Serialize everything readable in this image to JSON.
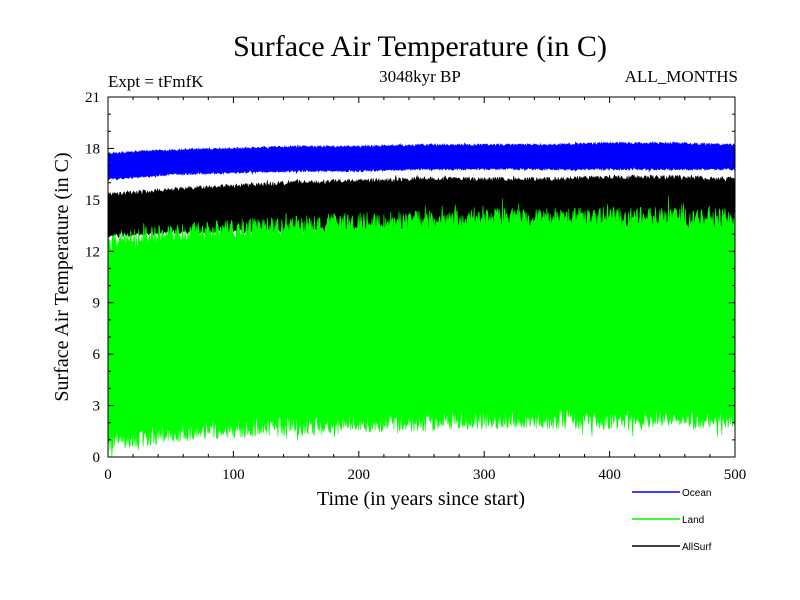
{
  "chart_data": {
    "type": "area",
    "title": "Surface Air Temperature (in C)",
    "subtitle": "3048kyr BP",
    "expt_label": "Expt = tFmfK",
    "months_label": "ALL_MONTHS",
    "xlabel": "Time (in years since start)",
    "ylabel": "Surface Air Temperature (in C)",
    "xlim": [
      0,
      500
    ],
    "ylim": [
      0,
      21
    ],
    "xticks": [
      0,
      100,
      200,
      300,
      400,
      500
    ],
    "yticks": [
      0,
      3,
      6,
      9,
      12,
      15,
      18,
      21
    ],
    "grid": false,
    "legend_position": "bottom-right",
    "colors": {
      "Ocean": "#0000ff",
      "Land": "#00ff00",
      "AllSurf": "#000000"
    },
    "series": [
      {
        "name": "Ocean",
        "x": [
          0,
          50,
          100,
          150,
          200,
          250,
          300,
          350,
          400,
          450,
          500
        ],
        "low": [
          16.2,
          16.5,
          16.6,
          16.7,
          16.7,
          16.8,
          16.8,
          16.8,
          16.8,
          16.8,
          16.8
        ],
        "high": [
          17.7,
          17.9,
          18.0,
          18.1,
          18.1,
          18.2,
          18.2,
          18.2,
          18.3,
          18.3,
          18.2
        ]
      },
      {
        "name": "AllSurf",
        "x": [
          0,
          50,
          100,
          150,
          200,
          250,
          300,
          350,
          400,
          450,
          500
        ],
        "low": [
          12.9,
          13.1,
          13.2,
          13.2,
          13.3,
          13.4,
          13.4,
          13.4,
          13.4,
          13.4,
          13.4
        ],
        "high": [
          15.3,
          15.6,
          15.8,
          16.0,
          16.1,
          16.2,
          16.2,
          16.2,
          16.3,
          16.3,
          16.2
        ]
      },
      {
        "name": "Land",
        "x": [
          0,
          50,
          100,
          150,
          200,
          250,
          300,
          350,
          400,
          450,
          500
        ],
        "low": [
          0.9,
          1.4,
          1.7,
          1.8,
          2.0,
          2.1,
          2.2,
          2.2,
          2.2,
          2.3,
          2.2
        ],
        "high": [
          12.6,
          13.0,
          13.3,
          13.5,
          13.7,
          13.8,
          13.9,
          14.0,
          14.0,
          14.0,
          13.9
        ]
      }
    ]
  }
}
